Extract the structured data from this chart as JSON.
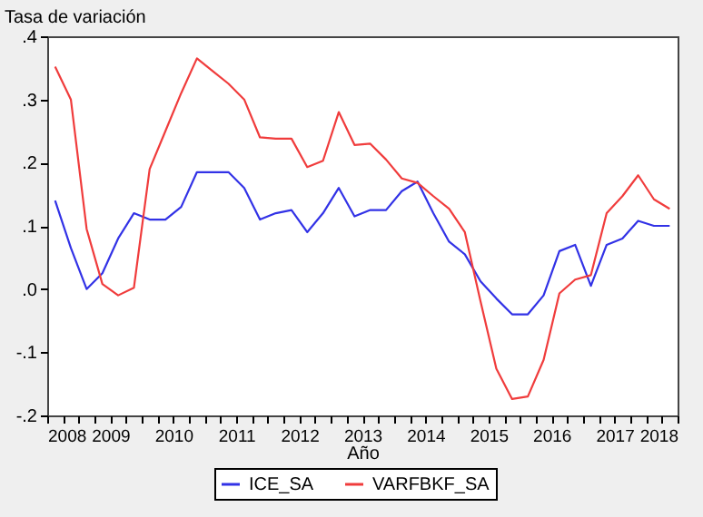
{
  "chart_data": {
    "type": "line",
    "ylabel": "Tasa de variación",
    "xlabel": "Año",
    "x": [
      2008.125,
      2008.375,
      2008.625,
      2008.875,
      2009.125,
      2009.375,
      2009.625,
      2009.875,
      2010.125,
      2010.375,
      2010.625,
      2010.875,
      2011.125,
      2011.375,
      2011.625,
      2011.875,
      2012.125,
      2012.375,
      2012.625,
      2012.875,
      2013.125,
      2013.375,
      2013.625,
      2013.875,
      2014.125,
      2014.375,
      2014.625,
      2014.875,
      2015.125,
      2015.375,
      2015.625,
      2015.875,
      2016.125,
      2016.375,
      2016.625,
      2016.875,
      2017.125,
      2017.375,
      2017.625,
      2017.875
    ],
    "series": [
      {
        "name": "ICE_SA",
        "color": "#3232e6",
        "values": [
          0.14,
          0.065,
          0.0,
          0.025,
          0.08,
          0.12,
          0.11,
          0.11,
          0.13,
          0.185,
          0.185,
          0.185,
          0.16,
          0.11,
          0.12,
          0.125,
          0.09,
          0.12,
          0.16,
          0.115,
          0.125,
          0.125,
          0.155,
          0.17,
          0.12,
          0.075,
          0.055,
          0.012,
          -0.015,
          -0.04,
          -0.04,
          -0.01,
          0.06,
          0.07,
          0.005,
          0.07,
          0.08,
          0.108,
          0.1,
          0.1
        ]
      },
      {
        "name": "VARFBKF_SA",
        "color": "#f03c3c",
        "values": [
          0.352,
          0.3,
          0.095,
          0.008,
          -0.01,
          0.002,
          0.19,
          0.25,
          0.31,
          0.365,
          0.345,
          0.325,
          0.3,
          0.24,
          0.238,
          0.238,
          0.193,
          0.203,
          0.28,
          0.228,
          0.23,
          0.205,
          0.175,
          0.168,
          0.147,
          0.127,
          0.09,
          -0.02,
          -0.126,
          -0.174,
          -0.17,
          -0.112,
          -0.007,
          0.015,
          0.022,
          0.12,
          0.147,
          0.18,
          0.142,
          0.127
        ]
      }
    ],
    "xlim": [
      2008,
      2018
    ],
    "xticks": [
      2008,
      {
        "value": 2008.25,
        "label": null
      },
      {
        "value": 2008.5,
        "label": null
      },
      {
        "value": 2008.75,
        "label": null
      },
      2009,
      {
        "value": 2009.25,
        "label": null
      },
      {
        "value": 2009.5,
        "label": null
      },
      {
        "value": 2009.75,
        "label": null
      },
      2010,
      {
        "value": 2010.25,
        "label": null
      },
      {
        "value": 2010.5,
        "label": null
      },
      {
        "value": 2010.75,
        "label": null
      },
      2011,
      {
        "value": 2011.25,
        "label": null
      },
      {
        "value": 2011.5,
        "label": null
      },
      {
        "value": 2011.75,
        "label": null
      },
      2012,
      {
        "value": 2012.25,
        "label": null
      },
      {
        "value": 2012.5,
        "label": null
      },
      {
        "value": 2012.75,
        "label": null
      },
      2013,
      {
        "value": 2013.25,
        "label": null
      },
      {
        "value": 2013.5,
        "label": null
      },
      {
        "value": 2013.75,
        "label": null
      },
      2014,
      {
        "value": 2014.25,
        "label": null
      },
      {
        "value": 2014.5,
        "label": null
      },
      {
        "value": 2014.75,
        "label": null
      },
      2015,
      {
        "value": 2015.25,
        "label": null
      },
      {
        "value": 2015.5,
        "label": null
      },
      {
        "value": 2015.75,
        "label": null
      },
      2016,
      {
        "value": 2016.25,
        "label": null
      },
      {
        "value": 2016.5,
        "label": null
      },
      {
        "value": 2016.75,
        "label": null
      },
      2017,
      {
        "value": 2017.25,
        "label": null
      },
      {
        "value": 2017.5,
        "label": null
      },
      {
        "value": 2017.75,
        "label": null
      },
      2018
    ],
    "ylim": [
      -0.2,
      0.4
    ],
    "yticks": [
      {
        "value": -0.2,
        "label": "-.2"
      },
      {
        "value": -0.1,
        "label": "-.1"
      },
      {
        "value": 0,
        "label": ".0"
      },
      {
        "value": 0.1,
        "label": ".1"
      },
      {
        "value": 0.2,
        "label": ".2"
      },
      {
        "value": 0.3,
        "label": ".3"
      },
      {
        "value": 0.4,
        "label": ".4"
      }
    ],
    "grid": false,
    "legend": "bottom",
    "marker": "none",
    "line_style": "solid"
  }
}
